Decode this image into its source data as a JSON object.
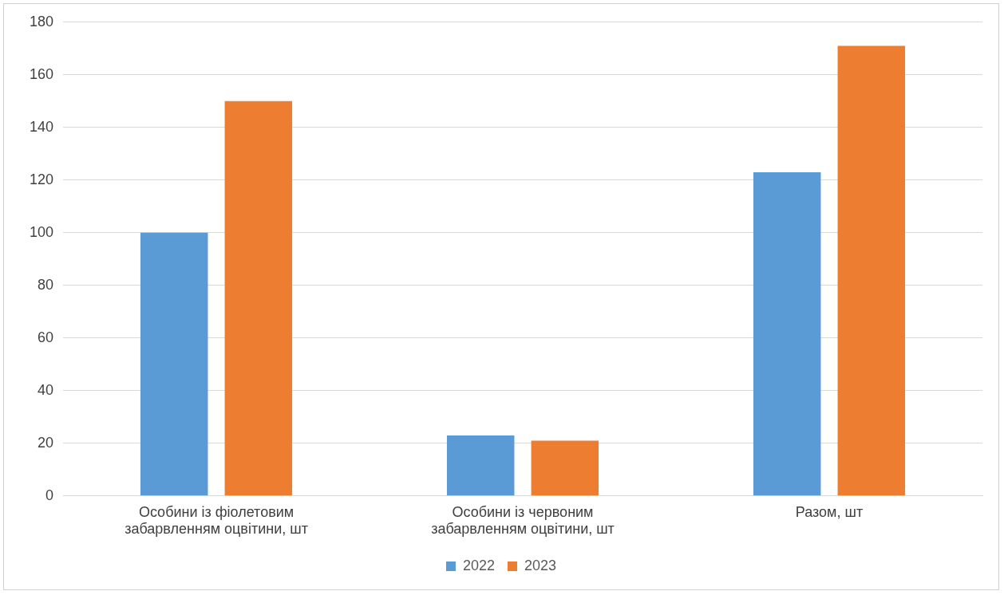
{
  "chart_data": {
    "type": "bar",
    "categories": [
      "Особини із фіолетовим забарвленням оцвітини, шт",
      "Особини із червоним забарвленням оцвітини, шт",
      "Разом, шт"
    ],
    "series": [
      {
        "name": "2022",
        "color": "#5b9bd5",
        "values": [
          100,
          23,
          123
        ]
      },
      {
        "name": "2023",
        "color": "#ed7d31",
        "values": [
          150,
          21,
          171
        ]
      }
    ],
    "ylim": [
      0,
      180
    ],
    "yticks": [
      0,
      20,
      40,
      60,
      80,
      100,
      120,
      140,
      160,
      180
    ],
    "grid": "y",
    "legend": "bottom"
  }
}
